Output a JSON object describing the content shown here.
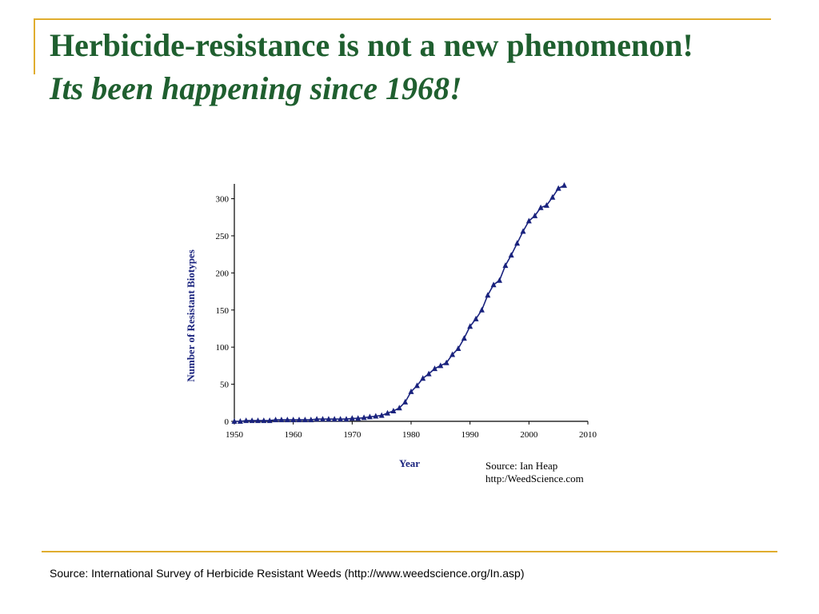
{
  "slide": {
    "title": "Herbicide-resistance is not a new phenomenon!",
    "subtitle": "Its been happening since 1968!",
    "footer_source": "Source: International Survey of Herbicide Resistant Weeds (http://www.weedscience.org/In.asp)"
  },
  "colors": {
    "title": "#1f5f2f",
    "accent_lines": "#e0ad2e",
    "series": "#1a237e",
    "axis_labels": "#1a237e"
  },
  "chart_data": {
    "type": "line",
    "xlabel": "Year",
    "ylabel": "Number of Resistant Biotypes",
    "xlim": [
      1950,
      2010
    ],
    "ylim": [
      0,
      320
    ],
    "x_ticks": [
      1950,
      1960,
      1970,
      1980,
      1990,
      2000,
      2010
    ],
    "y_ticks": [
      0,
      50,
      100,
      150,
      200,
      250,
      300
    ],
    "grid": false,
    "marker": "triangle",
    "annotation_lines": [
      "Source: Ian Heap",
      "http:/WeedScience.com"
    ],
    "series": [
      {
        "x": [
          1950,
          1951,
          1952,
          1953,
          1954,
          1955,
          1956,
          1957,
          1958,
          1959,
          1960,
          1961,
          1962,
          1963,
          1964,
          1965,
          1966,
          1967,
          1968,
          1969,
          1970,
          1971,
          1972,
          1973,
          1974,
          1975,
          1976,
          1977,
          1978,
          1979,
          1980,
          1981,
          1982,
          1983,
          1984,
          1985,
          1986,
          1987,
          1988,
          1989,
          1990,
          1991,
          1992,
          1993,
          1994,
          1995,
          1996,
          1997,
          1998,
          1999,
          2000,
          2001,
          2002,
          2003,
          2004,
          2005,
          2006
        ],
        "values": [
          0,
          0,
          1,
          1,
          1,
          1,
          1,
          2,
          2,
          2,
          2,
          2,
          2,
          2,
          3,
          3,
          3,
          3,
          3,
          3,
          4,
          4,
          5,
          6,
          7,
          8,
          11,
          14,
          18,
          26,
          40,
          48,
          58,
          64,
          71,
          75,
          79,
          90,
          98,
          112,
          128,
          138,
          150,
          170,
          184,
          190,
          210,
          224,
          240,
          256,
          270,
          277,
          288,
          291,
          302,
          314,
          318
        ]
      }
    ]
  }
}
